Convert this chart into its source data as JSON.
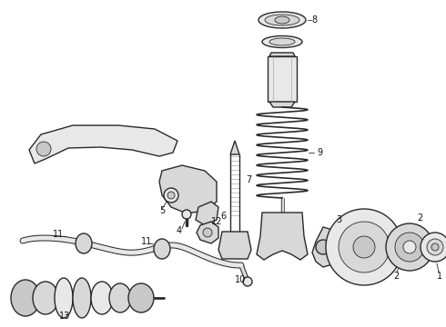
{
  "bg_color": "#ffffff",
  "line_color": "#2a2a2a",
  "label_color": "#111111",
  "fig_width": 4.9,
  "fig_height": 3.6,
  "dpi": 100,
  "spring_color": "#444444",
  "part_fill": "#e8e8e8",
  "part_fill_dark": "#c8c8c8",
  "part_fill_mid": "#d8d8d8"
}
